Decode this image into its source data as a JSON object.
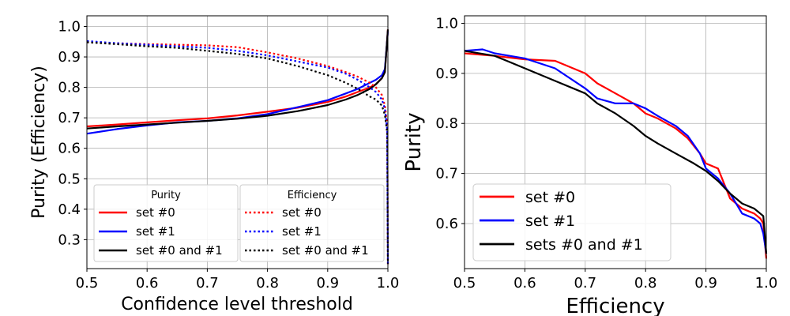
{
  "chart_data": [
    {
      "type": "line",
      "xlabel": "Confidence level threshold",
      "ylabel": "Purity (Efficiency)",
      "xlim": [
        0.5,
        1.0
      ],
      "ylim": [
        0.205,
        1.035
      ],
      "xticks": [
        0.5,
        0.6,
        0.7,
        0.8,
        0.9,
        1.0
      ],
      "xtick_labels": [
        "0.5",
        "0.6",
        "0.7",
        "0.8",
        "0.9",
        "1.0"
      ],
      "yticks": [
        0.3,
        0.4,
        0.5,
        0.6,
        0.7,
        0.8,
        0.9,
        1.0
      ],
      "ytick_labels": [
        "0.3",
        "0.4",
        "0.5",
        "0.6",
        "0.7",
        "0.8",
        "0.9",
        "1.0"
      ],
      "grid": true,
      "legend": {
        "placement": "lower-left",
        "groups": [
          {
            "title": "Purity",
            "entries": [
              {
                "label": "set #0",
                "color": "#ff0000",
                "style": "solid"
              },
              {
                "label": "set #1",
                "color": "#0000ff",
                "style": "solid"
              },
              {
                "label": "set #0 and #1",
                "color": "#000000",
                "style": "solid"
              }
            ]
          },
          {
            "title": "Efficiency",
            "entries": [
              {
                "label": "set #0",
                "color": "#ff0000",
                "style": "dotted"
              },
              {
                "label": "set #1",
                "color": "#0000ff",
                "style": "dotted"
              },
              {
                "label": "set #0 and #1",
                "color": "#000000",
                "style": "dotted"
              }
            ]
          }
        ]
      },
      "series": [
        {
          "name": "Purity set #0",
          "color": "#ff0000",
          "style": "solid",
          "x": [
            0.5,
            0.55,
            0.6,
            0.65,
            0.7,
            0.75,
            0.8,
            0.85,
            0.9,
            0.93,
            0.95,
            0.97,
            0.98,
            0.99,
            0.995,
            1.0
          ],
          "y": [
            0.672,
            0.678,
            0.685,
            0.692,
            0.698,
            0.708,
            0.72,
            0.733,
            0.752,
            0.77,
            0.785,
            0.8,
            0.81,
            0.83,
            0.85,
            0.99
          ]
        },
        {
          "name": "Purity set #1",
          "color": "#0000ff",
          "style": "solid",
          "x": [
            0.5,
            0.55,
            0.6,
            0.65,
            0.7,
            0.75,
            0.8,
            0.85,
            0.9,
            0.93,
            0.95,
            0.97,
            0.98,
            0.99,
            0.995,
            1.0
          ],
          "y": [
            0.648,
            0.663,
            0.675,
            0.685,
            0.69,
            0.698,
            0.712,
            0.735,
            0.758,
            0.78,
            0.795,
            0.815,
            0.825,
            0.84,
            0.86,
            0.985
          ]
        },
        {
          "name": "Purity set #0 and #1",
          "color": "#000000",
          "style": "solid",
          "x": [
            0.5,
            0.55,
            0.6,
            0.65,
            0.7,
            0.75,
            0.8,
            0.85,
            0.9,
            0.93,
            0.95,
            0.97,
            0.98,
            0.99,
            0.995,
            1.0
          ],
          "y": [
            0.665,
            0.672,
            0.678,
            0.684,
            0.69,
            0.697,
            0.707,
            0.722,
            0.742,
            0.76,
            0.775,
            0.795,
            0.81,
            0.83,
            0.85,
            0.99
          ]
        },
        {
          "name": "Efficiency set #0",
          "color": "#ff0000",
          "style": "dotted",
          "x": [
            0.5,
            0.55,
            0.6,
            0.65,
            0.7,
            0.75,
            0.8,
            0.85,
            0.9,
            0.93,
            0.95,
            0.97,
            0.98,
            0.99,
            0.995,
            0.999,
            1.0
          ],
          "y": [
            0.948,
            0.945,
            0.942,
            0.94,
            0.938,
            0.932,
            0.915,
            0.895,
            0.87,
            0.85,
            0.835,
            0.815,
            0.8,
            0.775,
            0.74,
            0.68,
            0.22
          ]
        },
        {
          "name": "Efficiency set #1",
          "color": "#0000ff",
          "style": "dotted",
          "x": [
            0.5,
            0.55,
            0.6,
            0.65,
            0.7,
            0.75,
            0.8,
            0.85,
            0.9,
            0.93,
            0.95,
            0.97,
            0.98,
            0.99,
            0.995,
            0.999,
            1.0
          ],
          "y": [
            0.952,
            0.945,
            0.94,
            0.935,
            0.93,
            0.92,
            0.905,
            0.885,
            0.865,
            0.845,
            0.825,
            0.8,
            0.785,
            0.76,
            0.73,
            0.66,
            0.22
          ]
        },
        {
          "name": "Efficiency set #0 and #1",
          "color": "#000000",
          "style": "dotted",
          "x": [
            0.5,
            0.55,
            0.6,
            0.65,
            0.7,
            0.75,
            0.8,
            0.85,
            0.9,
            0.93,
            0.95,
            0.97,
            0.98,
            0.99,
            0.995,
            0.999,
            1.0
          ],
          "y": [
            0.948,
            0.942,
            0.935,
            0.93,
            0.92,
            0.91,
            0.895,
            0.87,
            0.84,
            0.815,
            0.795,
            0.77,
            0.76,
            0.74,
            0.71,
            0.65,
            0.22
          ]
        }
      ]
    },
    {
      "type": "line",
      "xlabel": "Efficiency",
      "ylabel": "Purity",
      "xlim": [
        0.5,
        1.0
      ],
      "ylim": [
        0.51,
        1.015
      ],
      "xticks": [
        0.5,
        0.6,
        0.7,
        0.8,
        0.9,
        1.0
      ],
      "xtick_labels": [
        "0.5",
        "0.6",
        "0.7",
        "0.8",
        "0.9",
        "1.0"
      ],
      "yticks": [
        0.6,
        0.7,
        0.8,
        0.9,
        1.0
      ],
      "ytick_labels": [
        "0.6",
        "0.7",
        "0.8",
        "0.9",
        "1.0"
      ],
      "grid": true,
      "legend": {
        "placement": "lower-left",
        "entries": [
          {
            "label": "set #0",
            "color": "#ff0000"
          },
          {
            "label": "set #1",
            "color": "#0000ff"
          },
          {
            "label": "sets #0 and #1",
            "color": "#000000"
          }
        ]
      },
      "series": [
        {
          "name": "set #0",
          "color": "#ff0000",
          "x": [
            0.5,
            0.55,
            0.6,
            0.65,
            0.7,
            0.72,
            0.75,
            0.78,
            0.8,
            0.82,
            0.85,
            0.87,
            0.89,
            0.9,
            0.92,
            0.94,
            0.96,
            0.98,
            0.99,
            0.995,
            1.0
          ],
          "y": [
            0.94,
            0.935,
            0.928,
            0.925,
            0.9,
            0.88,
            0.86,
            0.84,
            0.82,
            0.81,
            0.79,
            0.77,
            0.74,
            0.72,
            0.71,
            0.65,
            0.63,
            0.62,
            0.61,
            0.6,
            0.53
          ]
        },
        {
          "name": "set #1",
          "color": "#0000ff",
          "x": [
            0.5,
            0.53,
            0.55,
            0.6,
            0.65,
            0.7,
            0.72,
            0.75,
            0.78,
            0.8,
            0.82,
            0.85,
            0.87,
            0.89,
            0.9,
            0.92,
            0.94,
            0.96,
            0.98,
            0.99,
            0.995,
            1.0
          ],
          "y": [
            0.945,
            0.948,
            0.94,
            0.93,
            0.91,
            0.87,
            0.85,
            0.84,
            0.84,
            0.83,
            0.815,
            0.795,
            0.775,
            0.74,
            0.71,
            0.69,
            0.66,
            0.62,
            0.61,
            0.6,
            0.58,
            0.54
          ]
        },
        {
          "name": "sets #0 and #1",
          "color": "#000000",
          "x": [
            0.5,
            0.55,
            0.6,
            0.65,
            0.7,
            0.72,
            0.75,
            0.78,
            0.8,
            0.82,
            0.85,
            0.88,
            0.9,
            0.92,
            0.94,
            0.96,
            0.98,
            0.99,
            0.995,
            1.0
          ],
          "y": [
            0.945,
            0.935,
            0.91,
            0.885,
            0.86,
            0.84,
            0.82,
            0.795,
            0.775,
            0.76,
            0.74,
            0.72,
            0.705,
            0.685,
            0.66,
            0.64,
            0.63,
            0.62,
            0.615,
            0.54
          ]
        }
      ]
    }
  ]
}
